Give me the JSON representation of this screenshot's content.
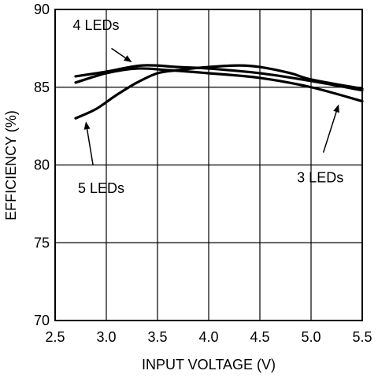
{
  "chart_data": {
    "type": "line",
    "xlabel": "INPUT VOLTAGE (V)",
    "ylabel": "EFFICIENCY (%)",
    "xlim": [
      2.5,
      5.5
    ],
    "ylim": [
      70,
      90
    ],
    "xticks": [
      "2.5",
      "3.0",
      "3.5",
      "4.0",
      "4.5",
      "5.0",
      "5.5"
    ],
    "yticks": [
      "70",
      "75",
      "80",
      "85",
      "90"
    ],
    "grid": true,
    "series": [
      {
        "name": "3 LEDs",
        "x": [
          2.7,
          3.0,
          3.3,
          3.6,
          4.0,
          4.5,
          5.0,
          5.5
        ],
        "y": [
          85.3,
          85.9,
          86.2,
          86.1,
          85.9,
          85.6,
          85.0,
          84.1
        ]
      },
      {
        "name": "4 LEDs",
        "x": [
          2.7,
          3.0,
          3.35,
          3.7,
          4.0,
          4.5,
          5.0,
          5.5
        ],
        "y": [
          85.7,
          86.0,
          86.4,
          86.3,
          86.2,
          85.9,
          85.4,
          84.8
        ]
      },
      {
        "name": "5 LEDs",
        "x": [
          2.7,
          2.9,
          3.1,
          3.3,
          3.5,
          3.7,
          4.0,
          4.3,
          4.5,
          4.8,
          5.0,
          5.5
        ],
        "y": [
          83.0,
          83.6,
          84.5,
          85.3,
          85.9,
          86.1,
          86.3,
          86.4,
          86.3,
          85.9,
          85.5,
          84.9
        ]
      }
    ],
    "annotations": [
      {
        "label": "4 LEDs",
        "series": "4 LEDs",
        "text_at": [
          2.9,
          89.0
        ],
        "arrow_from": [
          3.05,
          87.5
        ],
        "arrow_to": [
          3.25,
          86.6
        ]
      },
      {
        "label": "5 LEDs",
        "series": "5 LEDs",
        "text_at": [
          2.95,
          78.5
        ],
        "arrow_from": [
          2.87,
          80.0
        ],
        "arrow_to": [
          2.8,
          82.8
        ]
      },
      {
        "label": "3 LEDs",
        "series": "3 LEDs",
        "text_at": [
          5.09,
          79.2
        ],
        "arrow_from": [
          5.12,
          80.8
        ],
        "arrow_to": [
          5.27,
          83.9
        ]
      }
    ]
  }
}
